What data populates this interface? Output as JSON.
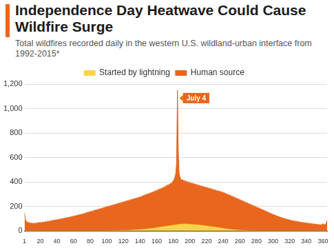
{
  "chart_data": {
    "type": "area",
    "title": "Independence Day Heatwave Could Cause Wildfire Surge",
    "subtitle": "Total wildfires recorded daily in the western U.S. wildland-urban interface from 1992-2015*",
    "x": [
      1,
      2,
      3,
      4,
      5,
      6,
      7,
      8,
      9,
      10,
      11,
      12,
      13,
      14,
      15,
      16,
      17,
      18,
      19,
      20,
      21,
      22,
      23,
      24,
      25,
      26,
      27,
      28,
      29,
      30,
      31,
      32,
      33,
      34,
      35,
      36,
      37,
      38,
      39,
      40,
      41,
      42,
      43,
      44,
      45,
      46,
      47,
      48,
      49,
      50,
      51,
      52,
      53,
      54,
      55,
      56,
      57,
      58,
      59,
      60,
      61,
      62,
      63,
      64,
      65,
      66,
      67,
      68,
      69,
      70,
      71,
      72,
      73,
      74,
      75,
      76,
      77,
      78,
      79,
      80,
      81,
      82,
      83,
      84,
      85,
      86,
      87,
      88,
      89,
      90,
      91,
      92,
      93,
      94,
      95,
      96,
      97,
      98,
      99,
      100,
      101,
      102,
      103,
      104,
      105,
      106,
      107,
      108,
      109,
      110,
      111,
      112,
      113,
      114,
      115,
      116,
      117,
      118,
      119,
      120,
      121,
      122,
      123,
      124,
      125,
      126,
      127,
      128,
      129,
      130,
      131,
      132,
      133,
      134,
      135,
      136,
      137,
      138,
      139,
      140,
      141,
      142,
      143,
      144,
      145,
      146,
      147,
      148,
      149,
      150,
      151,
      152,
      153,
      154,
      155,
      156,
      157,
      158,
      159,
      160,
      161,
      162,
      163,
      164,
      165,
      166,
      167,
      168,
      169,
      170,
      171,
      172,
      173,
      174,
      175,
      176,
      177,
      178,
      179,
      180,
      181,
      182,
      183,
      184,
      185,
      186,
      187,
      188,
      189,
      190,
      191,
      192,
      193,
      194,
      195,
      196,
      197,
      198,
      199,
      200,
      201,
      202,
      203,
      204,
      205,
      206,
      207,
      208,
      209,
      210,
      211,
      212,
      213,
      214,
      215,
      216,
      217,
      218,
      219,
      220,
      221,
      222,
      223,
      224,
      225,
      226,
      227,
      228,
      229,
      230,
      231,
      232,
      233,
      234,
      235,
      236,
      237,
      238,
      239,
      240,
      241,
      242,
      243,
      244,
      245,
      246,
      247,
      248,
      249,
      250,
      251,
      252,
      253,
      254,
      255,
      256,
      257,
      258,
      259,
      260,
      261,
      262,
      263,
      264,
      265,
      266,
      267,
      268,
      269,
      270,
      271,
      272,
      273,
      274,
      275,
      276,
      277,
      278,
      279,
      280,
      281,
      282,
      283,
      284,
      285,
      286,
      287,
      288,
      289,
      290,
      291,
      292,
      293,
      294,
      295,
      296,
      297,
      298,
      299,
      300,
      301,
      302,
      303,
      304,
      305,
      306,
      307,
      308,
      309,
      310,
      311,
      312,
      313,
      314,
      315,
      316,
      317,
      318,
      319,
      320,
      321,
      322,
      323,
      324,
      325,
      326,
      327,
      328,
      329,
      330,
      331,
      332,
      333,
      334,
      335,
      336,
      337,
      338,
      339,
      340,
      341,
      342,
      343,
      344,
      345,
      346,
      347,
      348,
      349,
      350,
      351,
      352,
      353,
      354,
      355,
      356,
      357,
      358,
      359,
      360,
      361,
      362,
      363,
      364,
      365
    ],
    "series": [
      {
        "name": "Human source",
        "color": "#e8661d",
        "values": [
          150,
          95,
          80,
          72,
          68,
          70,
          65,
          62,
          66,
          60,
          64,
          58,
          62,
          66,
          60,
          63,
          70,
          65,
          68,
          72,
          66,
          70,
          74,
          68,
          72,
          78,
          70,
          75,
          80,
          76,
          82,
          78,
          85,
          80,
          88,
          84,
          90,
          86,
          92,
          88,
          95,
          90,
          98,
          94,
          100,
          96,
          104,
          98,
          106,
          102,
          110,
          104,
          112,
          108,
          115,
          110,
          118,
          114,
          122,
          116,
          125,
          120,
          128,
          122,
          132,
          126,
          135,
          130,
          138,
          132,
          142,
          136,
          145,
          140,
          150,
          144,
          155,
          148,
          158,
          152,
          162,
          156,
          165,
          160,
          170,
          164,
          175,
          168,
          178,
          172,
          182,
          176,
          186,
          180,
          190,
          184,
          194,
          188,
          198,
          192,
          202,
          196,
          206,
          200,
          210,
          204,
          214,
          208,
          218,
          212,
          222,
          216,
          226,
          220,
          230,
          224,
          234,
          228,
          238,
          232,
          242,
          236,
          246,
          240,
          250,
          244,
          254,
          248,
          258,
          252,
          262,
          256,
          266,
          260,
          270,
          264,
          274,
          268,
          278,
          272,
          282,
          276,
          290,
          280,
          295,
          286,
          300,
          292,
          305,
          296,
          310,
          300,
          315,
          306,
          320,
          312,
          326,
          318,
          332,
          322,
          338,
          328,
          345,
          334,
          350,
          340,
          356,
          346,
          362,
          352,
          370,
          360,
          378,
          366,
          385,
          372,
          392,
          380,
          400,
          410,
          420,
          440,
          470,
          560,
          1150,
          640,
          470,
          440,
          425,
          415,
          420,
          405,
          415,
          400,
          410,
          398,
          405,
          392,
          400,
          388,
          395,
          384,
          392,
          380,
          388,
          376,
          384,
          372,
          380,
          368,
          376,
          364,
          372,
          360,
          368,
          356,
          364,
          352,
          360,
          348,
          356,
          344,
          352,
          340,
          348,
          336,
          344,
          332,
          340,
          328,
          336,
          324,
          332,
          320,
          328,
          316,
          324,
          312,
          320,
          308,
          316,
          302,
          310,
          296,
          304,
          290,
          298,
          284,
          292,
          278,
          286,
          272,
          280,
          266,
          274,
          260,
          268,
          254,
          262,
          248,
          256,
          242,
          250,
          236,
          244,
          230,
          238,
          224,
          232,
          218,
          226,
          212,
          220,
          206,
          214,
          200,
          208,
          194,
          202,
          188,
          196,
          182,
          190,
          176,
          184,
          170,
          178,
          164,
          172,
          158,
          166,
          152,
          160,
          146,
          154,
          140,
          148,
          134,
          142,
          128,
          136,
          124,
          130,
          118,
          125,
          114,
          120,
          108,
          115,
          104,
          110,
          100,
          106,
          96,
          102,
          92,
          98,
          88,
          94,
          85,
          90,
          82,
          87,
          80,
          84,
          77,
          82,
          75,
          80,
          72,
          77,
          70,
          74,
          68,
          72,
          66,
          70,
          64,
          68,
          62,
          66,
          60,
          64,
          58,
          62,
          56,
          60,
          55,
          58,
          54,
          57,
          52,
          55,
          50,
          54,
          49,
          52,
          48,
          55,
          60,
          50,
          52,
          58,
          62,
          90
        ]
      },
      {
        "name": "Started by lightning",
        "color": "#fbd34a",
        "values": [
          0,
          0,
          0,
          0,
          0,
          0,
          0,
          0,
          0,
          0,
          0,
          0,
          0,
          0,
          0,
          0,
          0,
          0,
          0,
          0,
          0,
          0,
          0,
          0,
          0,
          0,
          0,
          0,
          0,
          0,
          0,
          0,
          0,
          0,
          0,
          0,
          0,
          0,
          0,
          0,
          0,
          0,
          0,
          0,
          0,
          0,
          0,
          0,
          0,
          0,
          0,
          0,
          0,
          0,
          0,
          0,
          0,
          0,
          0,
          0,
          0,
          0,
          0,
          0,
          0,
          0,
          0,
          0,
          0,
          0,
          0,
          0,
          0,
          0,
          0,
          0,
          0,
          0,
          0,
          0,
          0,
          0,
          0,
          0,
          0,
          0,
          0,
          0,
          0,
          0,
          0,
          0,
          0,
          0,
          0,
          0,
          0,
          0,
          0,
          0,
          1,
          0,
          1,
          1,
          0,
          1,
          1,
          2,
          1,
          1,
          2,
          1,
          2,
          2,
          1,
          2,
          3,
          2,
          3,
          2,
          3,
          4,
          3,
          4,
          5,
          4,
          5,
          6,
          5,
          6,
          7,
          6,
          8,
          7,
          9,
          8,
          10,
          9,
          11,
          10,
          12,
          11,
          13,
          12,
          14,
          13,
          15,
          14,
          17,
          16,
          18,
          17,
          20,
          19,
          22,
          21,
          24,
          23,
          26,
          25,
          28,
          27,
          30,
          29,
          32,
          31,
          34,
          33,
          36,
          35,
          38,
          37,
          40,
          39,
          42,
          41,
          44,
          43,
          46,
          45,
          48,
          46,
          50,
          48,
          52,
          50,
          54,
          52,
          55,
          53,
          56,
          54,
          58,
          55,
          57,
          54,
          56,
          53,
          55,
          52,
          54,
          51,
          53,
          50,
          52,
          49,
          51,
          48,
          50,
          47,
          48,
          45,
          47,
          44,
          45,
          42,
          44,
          41,
          42,
          39,
          40,
          37,
          38,
          35,
          36,
          33,
          34,
          31,
          32,
          29,
          30,
          27,
          28,
          25,
          26,
          23,
          24,
          21,
          22,
          19,
          20,
          17,
          18,
          15,
          16,
          13,
          14,
          12,
          12,
          10,
          10,
          9,
          9,
          8,
          8,
          7,
          7,
          6,
          6,
          5,
          5,
          4,
          4,
          4,
          3,
          3,
          3,
          2,
          2,
          2,
          2,
          2,
          1,
          1,
          1,
          1,
          1,
          1,
          1,
          1,
          0,
          0,
          0,
          0,
          0,
          0,
          0,
          0,
          0,
          0,
          0,
          0,
          0,
          0,
          0,
          0,
          0,
          0,
          0,
          0,
          0,
          0,
          0,
          0,
          0,
          0,
          0,
          0,
          0,
          0,
          0,
          0,
          0,
          0,
          0,
          0,
          0,
          0,
          0,
          0,
          0,
          0,
          0,
          0,
          0,
          0,
          0,
          0,
          0,
          0,
          0,
          0,
          0,
          0,
          0,
          0,
          0,
          0,
          0,
          0,
          0,
          0,
          0,
          0,
          0,
          0,
          0,
          0,
          0,
          0,
          0,
          0,
          0,
          0,
          0,
          0,
          0,
          0,
          0,
          0,
          0,
          0,
          0,
          0,
          0
        ]
      }
    ],
    "xlim": [
      1,
      365
    ],
    "xticks": [
      1,
      20,
      40,
      60,
      80,
      100,
      120,
      140,
      160,
      180,
      200,
      220,
      240,
      260,
      280,
      300,
      320,
      340,
      360
    ],
    "ylim": [
      0,
      1200
    ],
    "yticks": [
      0,
      200,
      400,
      600,
      800,
      {
        "value": 1000,
        "label": "1,000"
      },
      {
        "value": 1200,
        "label": "1,200"
      }
    ],
    "grid": true,
    "legend": "top",
    "annotations": [
      {
        "text": "July 4",
        "x": 185
      }
    ]
  }
}
